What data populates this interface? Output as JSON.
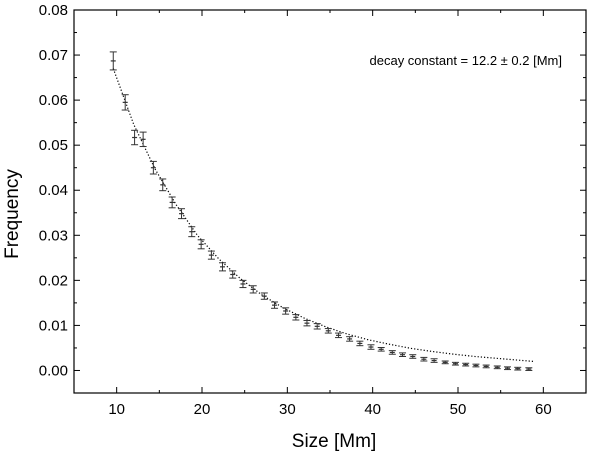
{
  "chart_data": {
    "type": "scatter",
    "xlabel": "Size [Mm]",
    "ylabel": "Frequency",
    "xlim": [
      5,
      65
    ],
    "ylim": [
      -0.005,
      0.08
    ],
    "xticks": [
      10,
      20,
      30,
      40,
      50,
      60
    ],
    "yticks": [
      0.0,
      0.01,
      0.02,
      0.03,
      0.04,
      0.05,
      0.06,
      0.07,
      0.08
    ],
    "ytick_labels": [
      "0.00",
      "0.01",
      "0.02",
      "0.03",
      "0.04",
      "0.05",
      "0.06",
      "0.07",
      "0.08"
    ],
    "annotation": "decay constant = 12.2 ± 0.2 [Mm]",
    "grid": false,
    "series": [
      {
        "marker": "errorbar",
        "color": "#333333",
        "x": [
          9.6,
          11.0,
          12.1,
          13.1,
          14.3,
          15.4,
          16.5,
          17.6,
          18.8,
          19.9,
          21.1,
          22.4,
          23.6,
          24.8,
          26.0,
          27.3,
          28.5,
          29.8,
          31.0,
          32.3,
          33.5,
          34.8,
          36.0,
          37.3,
          38.5,
          39.8,
          41.0,
          42.3,
          43.5,
          44.7,
          46.0,
          47.2,
          48.5,
          49.7,
          50.9,
          52.1,
          53.3,
          54.6,
          55.8,
          57.0,
          58.3
        ],
        "y": [
          0.0687,
          0.0595,
          0.0517,
          0.0513,
          0.045,
          0.0412,
          0.0373,
          0.0348,
          0.0308,
          0.028,
          0.0256,
          0.023,
          0.0213,
          0.0192,
          0.018,
          0.0165,
          0.0145,
          0.0132,
          0.0118,
          0.0105,
          0.0098,
          0.0088,
          0.0078,
          0.007,
          0.006,
          0.0052,
          0.0047,
          0.004,
          0.0035,
          0.0031,
          0.0025,
          0.0022,
          0.0018,
          0.0015,
          0.0013,
          0.0011,
          0.0009,
          0.0007,
          0.0005,
          0.0004,
          0.0003
        ],
        "yerr": [
          0.002,
          0.0017,
          0.0016,
          0.0016,
          0.0014,
          0.0013,
          0.0012,
          0.0011,
          0.0011,
          0.001,
          0.0009,
          0.0009,
          0.0008,
          0.0008,
          0.0008,
          0.0007,
          0.0007,
          0.0007,
          0.0006,
          0.0006,
          0.0006,
          0.0005,
          0.0005,
          0.0005,
          0.0005,
          0.0005,
          0.0004,
          0.0004,
          0.0004,
          0.0004,
          0.0004,
          0.0004,
          0.0003,
          0.0003,
          0.0003,
          0.0003,
          0.0003,
          0.0003,
          0.0003,
          0.0003,
          0.0003
        ]
      }
    ],
    "fit_curve": {
      "style": "dotted",
      "color": "#000000",
      "x": [
        9.6,
        12.0,
        14.5,
        17.0,
        19.5,
        22.0,
        24.5,
        27.0,
        29.5,
        32.0,
        34.5,
        37.0,
        39.5,
        42.0,
        44.5,
        47.0,
        49.5,
        52.0,
        54.5,
        57.0,
        59.0
      ],
      "y": [
        0.067,
        0.0546,
        0.0447,
        0.0367,
        0.0299,
        0.0247,
        0.0204,
        0.0168,
        0.0139,
        0.0116,
        0.0097,
        0.0081,
        0.0068,
        0.0058,
        0.0049,
        0.0042,
        0.0036,
        0.0031,
        0.0027,
        0.0023,
        0.002
      ]
    }
  }
}
